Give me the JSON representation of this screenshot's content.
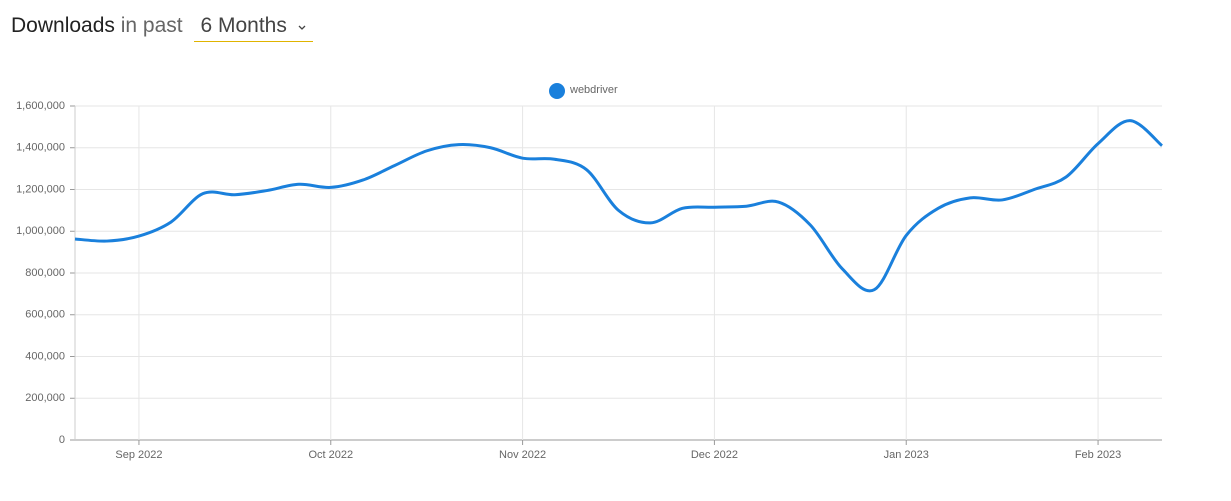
{
  "header": {
    "title": "Downloads",
    "connector": "in past",
    "period": "6 Months"
  },
  "chart_data": {
    "type": "line",
    "categories": [
      null,
      null,
      "Sep 2022",
      null,
      null,
      null,
      null,
      null,
      "Oct 2022",
      null,
      null,
      null,
      null,
      null,
      "Nov 2022",
      null,
      null,
      null,
      null,
      null,
      "Dec 2022",
      null,
      null,
      null,
      null,
      null,
      "Jan 2023",
      null,
      null,
      null,
      null,
      null,
      "Feb 2023",
      null,
      null
    ],
    "series": [
      {
        "name": "webdriver",
        "color": "#1a80dc",
        "values": [
          963000,
          953000,
          977000,
          1044000,
          1180000,
          1175000,
          1195000,
          1225000,
          1210000,
          1245000,
          1315000,
          1385000,
          1415000,
          1400000,
          1350000,
          1345000,
          1295000,
          1100000,
          1040000,
          1110000,
          1115000,
          1120000,
          1140000,
          1030000,
          820000,
          720000,
          980000,
          1110000,
          1160000,
          1150000,
          1200000,
          1260000,
          1420000,
          1530000,
          1410000
        ]
      }
    ],
    "ylim": [
      0,
      1600000
    ],
    "yticks": [
      0,
      {
        "value": 200000,
        "label": "200,000"
      },
      {
        "value": 400000,
        "label": "400,000"
      },
      {
        "value": 600000,
        "label": "600,000"
      },
      {
        "value": 800000,
        "label": "800,000"
      },
      {
        "value": 1000000,
        "label": "1,000,000"
      },
      {
        "value": 1200000,
        "label": "1,200,000"
      },
      {
        "value": 1400000,
        "label": "1,400,000"
      },
      {
        "value": 1600000,
        "label": "1,600,000"
      }
    ],
    "grid": true,
    "legend": "top"
  }
}
